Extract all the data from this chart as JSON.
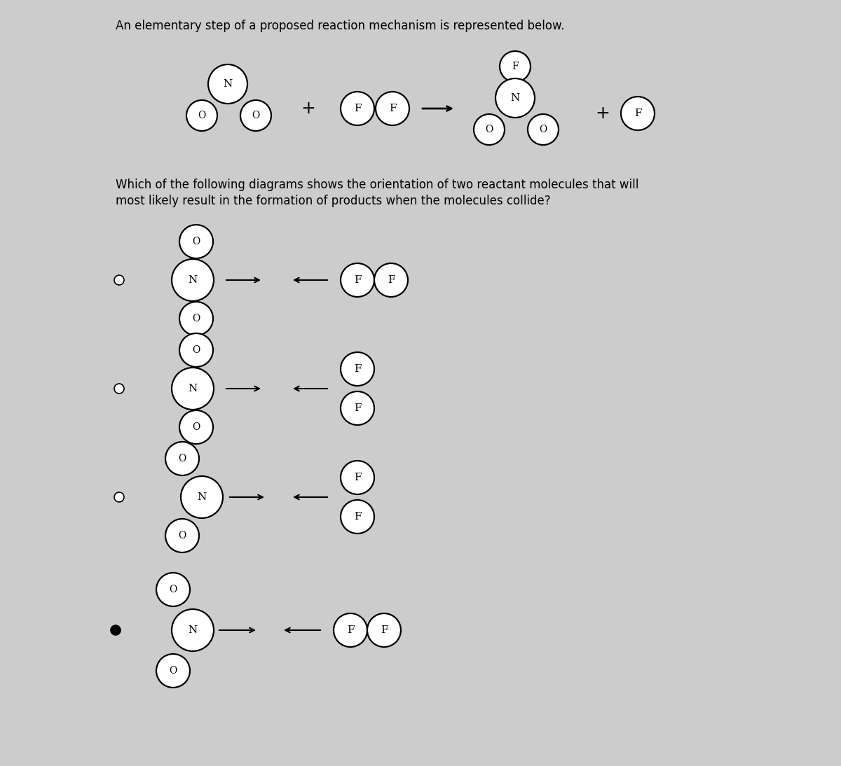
{
  "bg_color": "#cccccc",
  "title_text": "An elementary step of a proposed reaction mechanism is represented below.",
  "question_text1": "Which of the following diagrams shows the orientation of two reactant molecules that will",
  "question_text2": "most likely result in the formation of products when the molecules collide?",
  "circle_lw": 1.6,
  "title_fontsize": 12,
  "question_fontsize": 12,
  "label_fontsize_large": 11,
  "label_fontsize_small": 10
}
